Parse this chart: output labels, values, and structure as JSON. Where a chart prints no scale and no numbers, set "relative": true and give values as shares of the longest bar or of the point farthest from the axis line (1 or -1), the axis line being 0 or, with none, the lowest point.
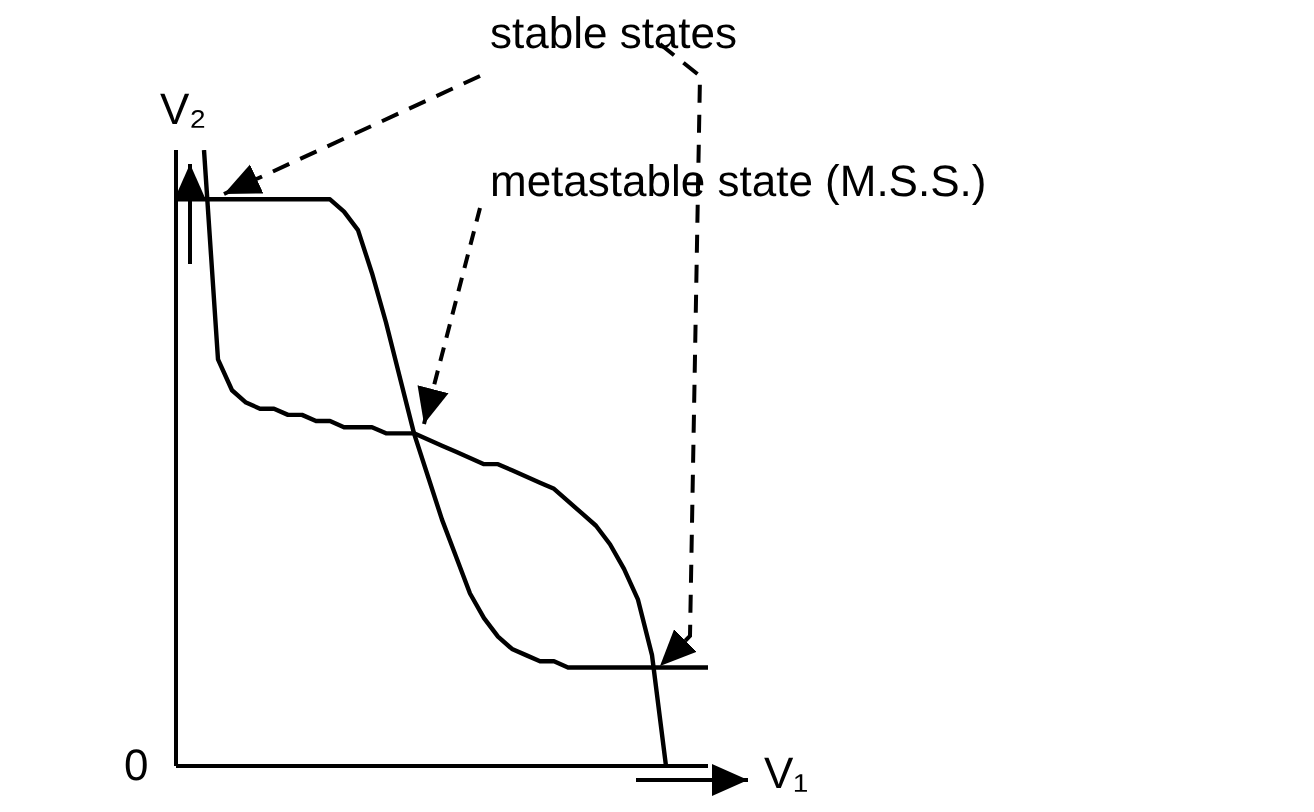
{
  "chart_data": {
    "type": "line",
    "relative": true,
    "xlabel": "V₁",
    "ylabel": "V₂",
    "marker": "none",
    "line_style": "solid",
    "categories": [
      null,
      null,
      null,
      null,
      null,
      null,
      null,
      null,
      null,
      null,
      null,
      null,
      null,
      null,
      null,
      null,
      null,
      null,
      null,
      null,
      null,
      null,
      null,
      null,
      null,
      null,
      null,
      null,
      null,
      null,
      null,
      null,
      null,
      null,
      null,
      null,
      null,
      null,
      null
    ],
    "series": [
      {
        "color": "#000000",
        "values": [
          0.92,
          0.92,
          0.92,
          0.92,
          0.92,
          0.92,
          0.92,
          0.92,
          0.92,
          0.92,
          0.92,
          0.92,
          0.9,
          0.87,
          0.8,
          0.72,
          0.63,
          0.54,
          0.47,
          0.4,
          0.34,
          0.28,
          0.24,
          0.21,
          0.19,
          0.18,
          0.17,
          0.17,
          0.16,
          0.16,
          0.16,
          0.16,
          0.16,
          0.16,
          0.16,
          0.16,
          0.16,
          0.16,
          0.16
        ]
      },
      {
        "color": "#000000",
        "values": [
          null,
          null,
          1.0,
          0.66,
          0.61,
          0.59,
          0.58,
          0.58,
          0.57,
          0.57,
          0.56,
          0.56,
          0.55,
          0.55,
          0.55,
          0.54,
          0.54,
          0.54,
          0.53,
          0.52,
          0.51,
          0.5,
          0.49,
          0.49,
          0.48,
          0.47,
          0.46,
          0.45,
          0.43,
          0.41,
          0.39,
          0.36,
          0.32,
          0.27,
          0.18,
          0,
          null,
          null,
          null
        ]
      }
    ],
    "annotations": [
      "stable states",
      "metastable state (M.S.S.)",
      "0"
    ]
  }
}
